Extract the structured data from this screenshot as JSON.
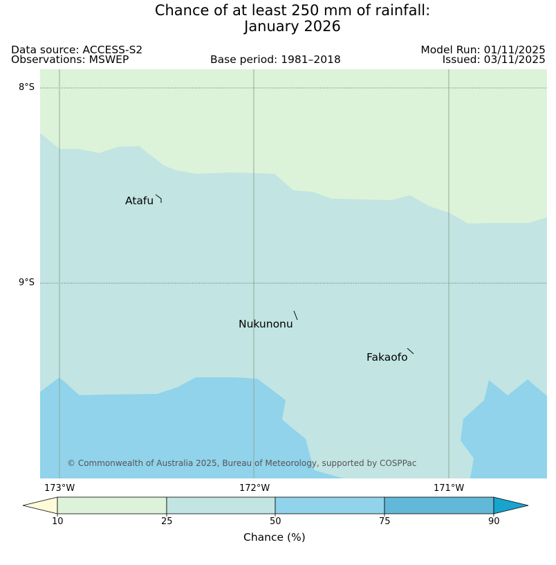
{
  "title": {
    "line1": "Chance of at least 250 mm of rainfall:",
    "line2": "January 2026"
  },
  "meta": {
    "data_source": "Data source: ACCESS-S2",
    "observations": "Observations: MSWEP",
    "base_period": "Base period: 1981–2018",
    "model_run": "Model Run: 01/11/2025",
    "issued": "Issued: 03/11/2025"
  },
  "map": {
    "lat_labels": [
      "8°S",
      "9°S"
    ],
    "lon_labels": [
      "173°W",
      "172°W",
      "171°W"
    ],
    "places": [
      "Atafu",
      "Nukunonu",
      "Fakaofo"
    ],
    "copyright": "© Commonwealth of Australia 2025, Bureau of Meteorology, supported by COSPPac"
  },
  "legend": {
    "title": "Chance (%)",
    "ticks": [
      "10",
      "25",
      "50",
      "75",
      "90"
    ],
    "colors": [
      "#fffbd9",
      "#dcf3d9",
      "#c2e4e3",
      "#90d3ea",
      "#62b8d8",
      "#18a4cc"
    ]
  }
}
